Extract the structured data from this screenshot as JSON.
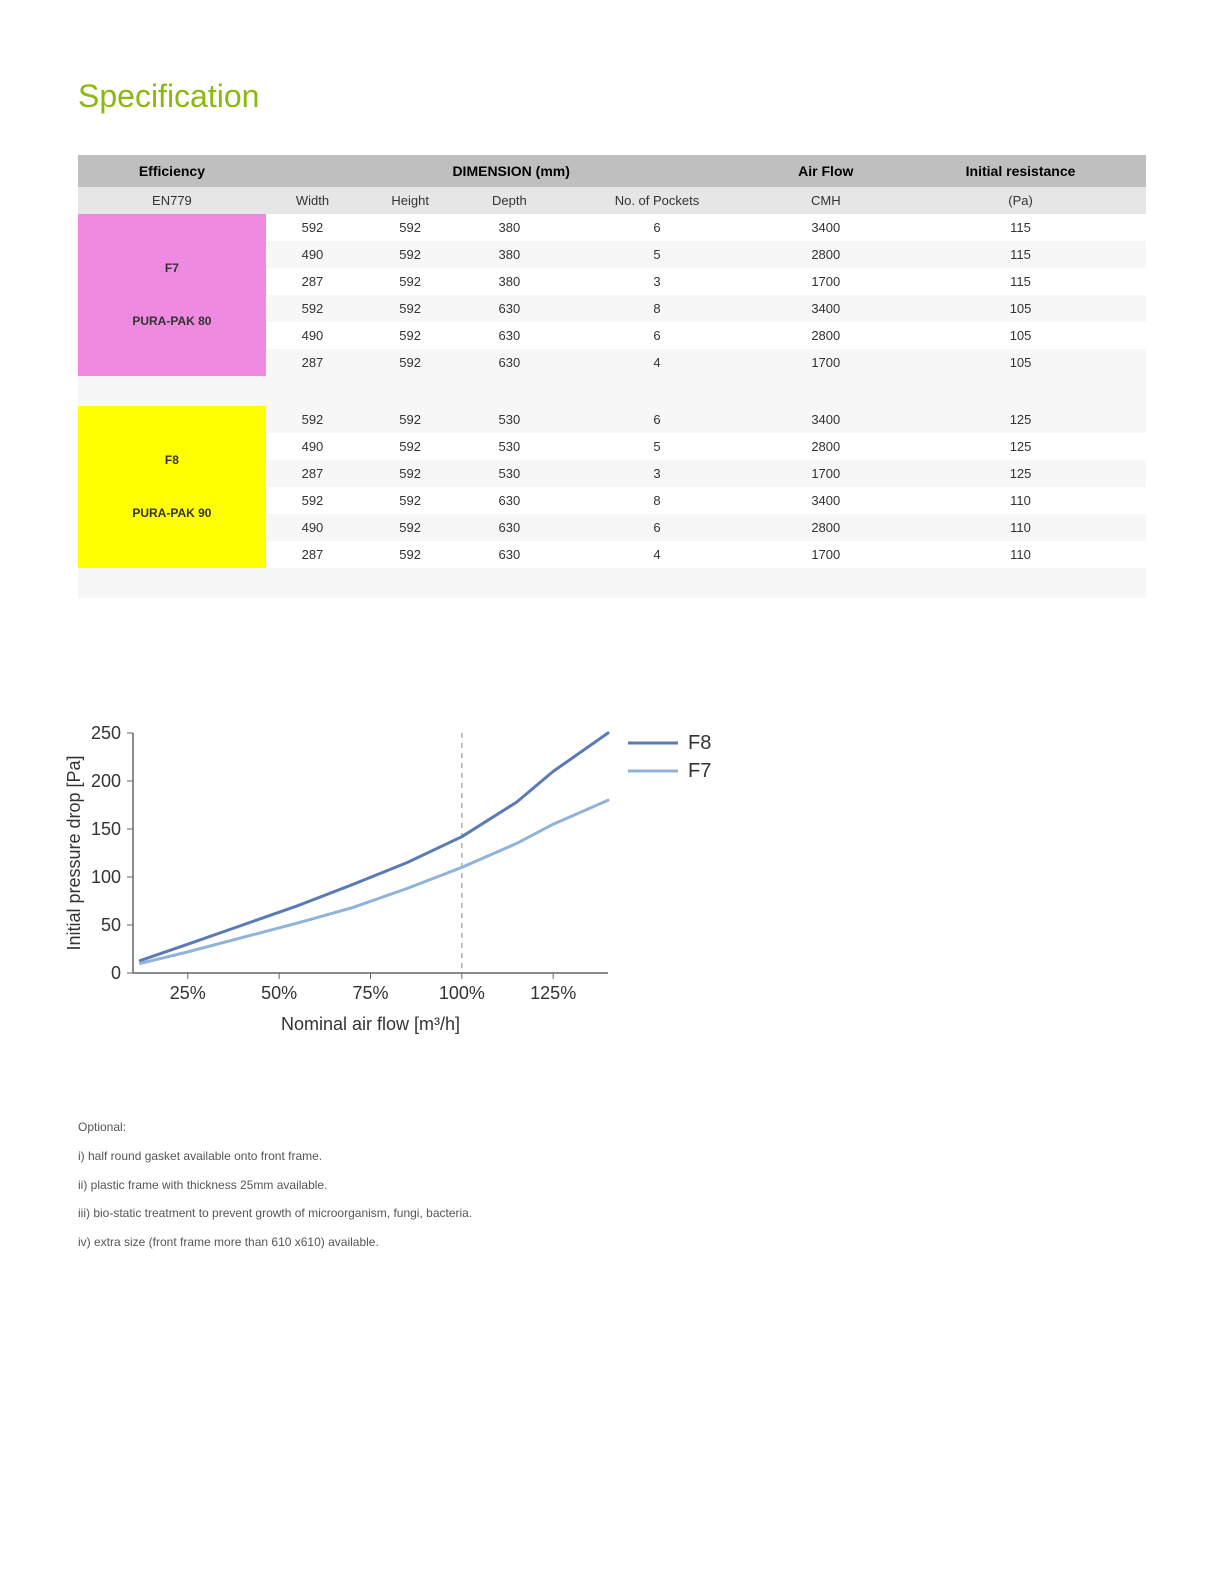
{
  "title": "Specification",
  "table": {
    "headers": {
      "efficiency": "Efficiency",
      "dimension": "DIMENSION (mm)",
      "airflow": "Air Flow",
      "resistance": "Initial resistance"
    },
    "subheaders": {
      "en": "EN779",
      "width": "Width",
      "height": "Height",
      "depth": "Depth",
      "pockets": "No. of Pockets",
      "cmh": "CMH",
      "pa": "(Pa)"
    },
    "groups": [
      {
        "label_line1": "F7",
        "label_line2": "PURA-PAK 80",
        "bg": "#ee8ae0",
        "rows": [
          [
            "592",
            "592",
            "380",
            "6",
            "3400",
            "115"
          ],
          [
            "490",
            "592",
            "380",
            "5",
            "2800",
            "115"
          ],
          [
            "287",
            "592",
            "380",
            "3",
            "1700",
            "115"
          ],
          [
            "592",
            "592",
            "630",
            "8",
            "3400",
            "105"
          ],
          [
            "490",
            "592",
            "630",
            "6",
            "2800",
            "105"
          ],
          [
            "287",
            "592",
            "630",
            "4",
            "1700",
            "105"
          ]
        ]
      },
      {
        "label_line1": "F8",
        "label_line2": "PURA-PAK 90",
        "bg": "#ffff00",
        "rows": [
          [
            "592",
            "592",
            "530",
            "6",
            "3400",
            "125"
          ],
          [
            "490",
            "592",
            "530",
            "5",
            "2800",
            "125"
          ],
          [
            "287",
            "592",
            "530",
            "3",
            "1700",
            "125"
          ],
          [
            "592",
            "592",
            "630",
            "8",
            "3400",
            "110"
          ],
          [
            "490",
            "592",
            "630",
            "6",
            "2800",
            "110"
          ],
          [
            "287",
            "592",
            "630",
            "4",
            "1700",
            "110"
          ]
        ]
      }
    ]
  },
  "chart": {
    "type": "line",
    "xlabel": "Nominal air flow [m³/h]",
    "ylabel": "Initial pressure drop [Pa]",
    "x_ticks": [
      "25%",
      "50%",
      "75%",
      "100%",
      "125%"
    ],
    "x_tick_vals": [
      25,
      50,
      75,
      100,
      125
    ],
    "y_ticks": [
      0,
      50,
      100,
      150,
      200,
      250
    ],
    "xlim": [
      10,
      140
    ],
    "ylim": [
      0,
      250
    ],
    "ref_line_x": 100,
    "line_width": 3,
    "axis_color": "#666666",
    "ref_color": "#999999",
    "background_color": "#ffffff",
    "legend": [
      {
        "label": "F8",
        "color": "#5a7bb5"
      },
      {
        "label": "F7",
        "color": "#8fb3d9"
      }
    ],
    "series": [
      {
        "name": "F8",
        "color": "#5a7bb5",
        "points": [
          [
            12,
            13
          ],
          [
            25,
            30
          ],
          [
            40,
            50
          ],
          [
            55,
            70
          ],
          [
            70,
            92
          ],
          [
            85,
            115
          ],
          [
            100,
            142
          ],
          [
            115,
            178
          ],
          [
            125,
            210
          ],
          [
            140,
            250
          ]
        ]
      },
      {
        "name": "F7",
        "color": "#8fb3d9",
        "points": [
          [
            12,
            10
          ],
          [
            25,
            22
          ],
          [
            40,
            37
          ],
          [
            55,
            52
          ],
          [
            70,
            68
          ],
          [
            85,
            88
          ],
          [
            100,
            110
          ],
          [
            115,
            135
          ],
          [
            125,
            155
          ],
          [
            140,
            180
          ]
        ]
      }
    ]
  },
  "notes": {
    "heading": "Optional:",
    "items": [
      "i) half round gasket available onto front frame.",
      "ii) plastic frame with thickness 25mm available.",
      "iii) bio-static treatment to prevent growth of microorganism, fungi, bacteria.",
      "iv) extra size (front frame more than 610 x610) available."
    ]
  }
}
